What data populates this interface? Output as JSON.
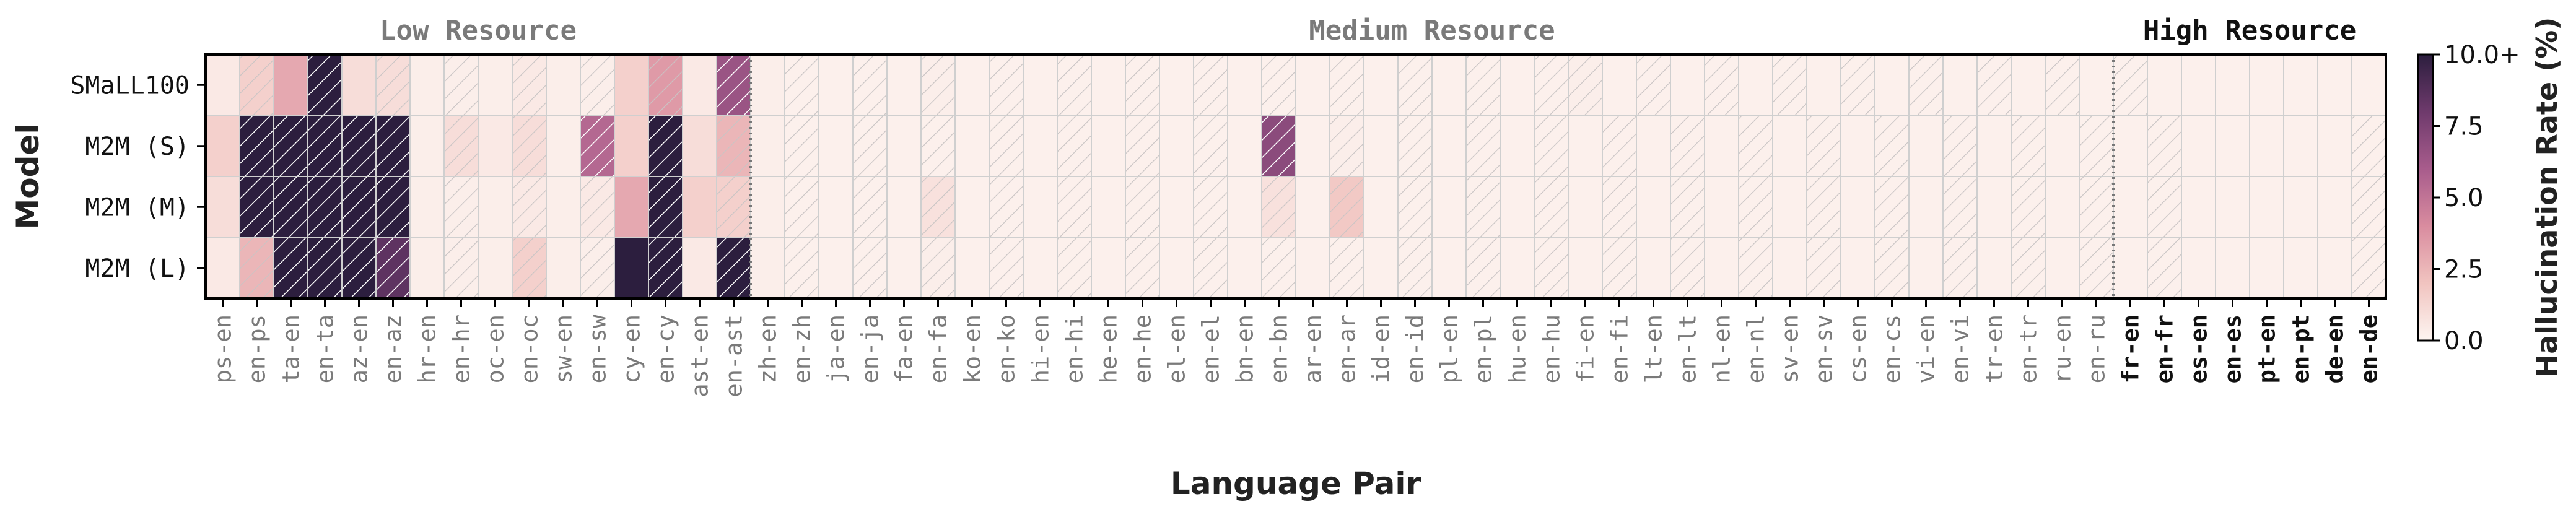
{
  "chart_data": {
    "type": "heatmap",
    "xlabel": "Language Pair",
    "ylabel": "Model",
    "colorbar_label": "Hallucination Rate (%)",
    "colorbar_ticks": [
      "0.0",
      "2.5",
      "5.0",
      "7.5",
      "10.0+"
    ],
    "value_range": [
      0,
      10
    ],
    "groups": [
      {
        "name": "Low Resource",
        "start": 0,
        "end": 16,
        "style": "muted"
      },
      {
        "name": "Medium Resource",
        "start": 16,
        "end": 56,
        "style": "muted"
      },
      {
        "name": "High Resource",
        "start": 56,
        "end": 64,
        "style": "bold"
      }
    ],
    "models": [
      "SMaLL100",
      "M2M (S)",
      "M2M (M)",
      "M2M (L)"
    ],
    "pairs": [
      "ps-en",
      "en-ps",
      "ta-en",
      "en-ta",
      "az-en",
      "en-az",
      "hr-en",
      "en-hr",
      "oc-en",
      "en-oc",
      "sw-en",
      "en-sw",
      "cy-en",
      "en-cy",
      "ast-en",
      "en-ast",
      "zh-en",
      "en-zh",
      "ja-en",
      "en-ja",
      "fa-en",
      "en-fa",
      "ko-en",
      "en-ko",
      "hi-en",
      "en-hi",
      "he-en",
      "en-he",
      "el-en",
      "en-el",
      "bn-en",
      "en-bn",
      "ar-en",
      "en-ar",
      "id-en",
      "en-id",
      "pl-en",
      "en-pl",
      "hu-en",
      "en-hu",
      "fi-en",
      "en-fi",
      "lt-en",
      "en-lt",
      "nl-en",
      "en-nl",
      "sv-en",
      "en-sv",
      "cs-en",
      "en-cs",
      "vi-en",
      "en-vi",
      "tr-en",
      "en-tr",
      "ru-en",
      "en-ru",
      "fr-en",
      "en-fr",
      "es-en",
      "en-es",
      "pt-en",
      "en-pt",
      "de-en",
      "en-de"
    ],
    "values": [
      [
        0.5,
        1.5,
        3.0,
        10.0,
        1.0,
        1.0,
        0.3,
        0.3,
        0.3,
        0.5,
        0.3,
        0.3,
        1.5,
        3.5,
        0.5,
        6.5,
        0.3,
        0.2,
        0.2,
        0.2,
        0.2,
        0.3,
        0.2,
        0.2,
        0.2,
        0.2,
        0.2,
        0.2,
        0.2,
        0.2,
        0.2,
        0.2,
        0.2,
        0.2,
        0.2,
        0.2,
        0.2,
        0.2,
        0.2,
        0.2,
        0.3,
        0.2,
        0.2,
        0.2,
        0.2,
        0.2,
        0.2,
        0.2,
        0.2,
        0.2,
        0.2,
        0.2,
        0.2,
        0.2,
        0.2,
        0.2,
        0.2,
        0.2,
        0.2,
        0.2,
        0.2,
        0.2,
        0.2,
        0.2
      ],
      [
        1.5,
        10.0,
        10.0,
        10.0,
        10.0,
        10.0,
        0.3,
        1.0,
        0.5,
        1.0,
        0.3,
        5.5,
        1.5,
        10.0,
        1.0,
        2.5,
        0.3,
        0.2,
        0.2,
        0.2,
        0.2,
        0.2,
        0.2,
        0.2,
        0.2,
        0.2,
        0.2,
        0.2,
        0.2,
        0.2,
        0.2,
        7.0,
        0.2,
        0.3,
        0.2,
        0.2,
        0.2,
        0.2,
        0.2,
        0.2,
        0.2,
        0.2,
        0.2,
        0.2,
        0.2,
        0.2,
        0.2,
        0.2,
        0.2,
        0.2,
        0.2,
        0.2,
        0.2,
        0.2,
        0.2,
        0.2,
        0.2,
        0.2,
        0.2,
        0.2,
        0.2,
        0.2,
        0.2,
        0.2
      ],
      [
        1.0,
        10.0,
        10.0,
        10.0,
        10.0,
        10.0,
        0.3,
        0.3,
        0.3,
        0.5,
        0.3,
        0.5,
        3.0,
        10.0,
        1.5,
        1.5,
        0.3,
        0.2,
        0.2,
        0.2,
        0.2,
        0.8,
        0.2,
        0.2,
        0.2,
        0.2,
        0.2,
        0.2,
        0.2,
        0.2,
        0.2,
        0.8,
        0.2,
        1.8,
        0.2,
        0.2,
        0.2,
        0.2,
        0.2,
        0.2,
        0.2,
        0.2,
        0.2,
        0.2,
        0.2,
        0.2,
        0.2,
        0.2,
        0.2,
        0.2,
        0.2,
        0.2,
        0.2,
        0.2,
        0.2,
        0.2,
        0.2,
        0.2,
        0.2,
        0.2,
        0.2,
        0.2,
        0.2,
        0.2
      ],
      [
        0.5,
        2.5,
        10.0,
        10.0,
        10.0,
        8.5,
        0.3,
        0.3,
        0.3,
        1.5,
        0.3,
        0.3,
        10.0,
        10.0,
        0.5,
        10.0,
        0.3,
        0.2,
        0.2,
        0.2,
        0.2,
        0.3,
        0.2,
        0.2,
        0.2,
        0.2,
        0.2,
        0.2,
        0.2,
        0.2,
        0.2,
        0.2,
        0.2,
        0.2,
        0.2,
        0.2,
        0.2,
        0.2,
        0.2,
        0.2,
        0.2,
        0.2,
        0.2,
        0.2,
        0.2,
        0.2,
        0.2,
        0.2,
        0.2,
        0.2,
        0.2,
        0.2,
        0.2,
        0.2,
        0.2,
        0.2,
        0.2,
        0.2,
        0.2,
        0.2,
        0.2,
        0.2,
        0.2,
        0.2
      ]
    ],
    "hatched_cells": [
      [
        1,
        3,
        5,
        7,
        9,
        11,
        13,
        15,
        17,
        19,
        21,
        23,
        25,
        27,
        29,
        31,
        33,
        35,
        37,
        39,
        40,
        42,
        44,
        46,
        48,
        50,
        52,
        54,
        56
      ],
      [
        1,
        2,
        3,
        4,
        5,
        7,
        9,
        11,
        13,
        15,
        17,
        19,
        21,
        23,
        25,
        27,
        29,
        31,
        33,
        35,
        37,
        39,
        41,
        43,
        45,
        47,
        49,
        51,
        53,
        55,
        57,
        63
      ],
      [
        1,
        2,
        3,
        4,
        5,
        7,
        9,
        11,
        13,
        15,
        17,
        19,
        21,
        23,
        25,
        27,
        29,
        31,
        33,
        35,
        37,
        39,
        41,
        43,
        45,
        47,
        49,
        51,
        53,
        55,
        57,
        63
      ],
      [
        1,
        2,
        3,
        4,
        5,
        7,
        9,
        11,
        13,
        15,
        17,
        19,
        21,
        23,
        25,
        27,
        29,
        31,
        33,
        35,
        37,
        39,
        41,
        43,
        45,
        47,
        49,
        51,
        53,
        55,
        57,
        63
      ]
    ],
    "separators_after": [
      16,
      56
    ],
    "colors": [
      "#fdf5f1",
      "#f1c4c0",
      "#d98c9f",
      "#a85c8c",
      "#6e3a6c",
      "#2c1e3e"
    ]
  }
}
